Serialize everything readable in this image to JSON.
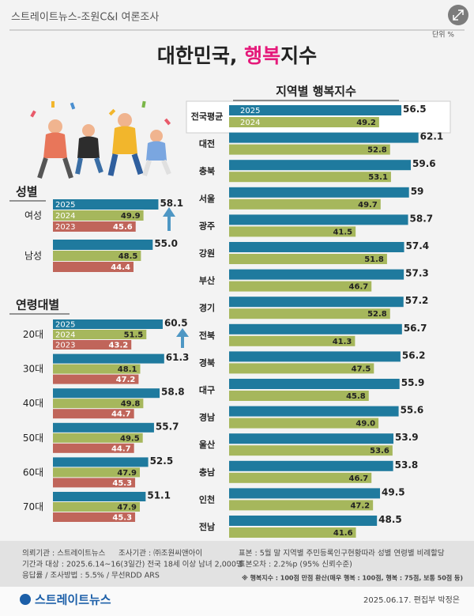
{
  "header": {
    "source": "스트레이트뉴스-조원C&I 여론조사",
    "unit": "단위 %",
    "title_parts": [
      "대한민국, ",
      "행복",
      "지수"
    ]
  },
  "chart_data": [
    {
      "type": "bar",
      "title": "성별",
      "categories": [
        "여성",
        "남성"
      ],
      "xlim": [
        0,
        64
      ],
      "series": [
        {
          "name": "2025",
          "color": "#1f7a9e",
          "values": [
            58.1,
            55.0
          ],
          "value_labels": [
            "58.1",
            "55.0"
          ]
        },
        {
          "name": "2024",
          "color": "#a6b75c",
          "values": [
            49.9,
            48.5
          ]
        },
        {
          "name": "2023",
          "color": "#c0655a",
          "values": [
            45.6,
            44.4
          ]
        }
      ]
    },
    {
      "type": "bar",
      "title": "연령대별",
      "categories": [
        "20대",
        "30대",
        "40대",
        "50대",
        "60대",
        "70대"
      ],
      "xlim": [
        0,
        64
      ],
      "series": [
        {
          "name": "2025",
          "color": "#1f7a9e",
          "values": [
            60.5,
            61.3,
            58.8,
            55.7,
            52.5,
            51.1
          ]
        },
        {
          "name": "2024",
          "color": "#a6b75c",
          "values": [
            51.5,
            48.1,
            49.8,
            49.5,
            47.9,
            47.9
          ]
        },
        {
          "name": "2023",
          "color": "#c0655a",
          "values": [
            43.2,
            47.2,
            44.7,
            44.7,
            45.3,
            45.3
          ]
        }
      ]
    },
    {
      "type": "bar",
      "title": "지역별 행복지수",
      "categories": [
        "전국평균",
        "대전",
        "충북",
        "서울",
        "광주",
        "강원",
        "부산",
        "경기",
        "전북",
        "경북",
        "대구",
        "경남",
        "울산",
        "충남",
        "인천",
        "전남"
      ],
      "xlim": [
        0,
        64
      ],
      "series": [
        {
          "name": "2025",
          "color": "#1f7a9e",
          "values": [
            56.5,
            62.1,
            59.6,
            59,
            58.7,
            57.4,
            57.3,
            57.2,
            56.7,
            56.2,
            55.9,
            55.6,
            53.9,
            53.8,
            49.5,
            48.5
          ]
        },
        {
          "name": "2024",
          "color": "#a6b75c",
          "values": [
            49.2,
            52.8,
            53.1,
            49.7,
            41.5,
            51.8,
            46.7,
            52.8,
            41.3,
            47.5,
            45.8,
            49.0,
            53.6,
            46.7,
            47.2,
            41.6
          ],
          "value_labels": [
            "49.2",
            "52.8",
            "53.1",
            "49.7",
            "41.5",
            "51.8",
            "46.7",
            "52.8",
            "41.3",
            "47.5",
            "45.8",
            "49.0",
            "53.6",
            "46.7",
            "47.2",
            "41.6"
          ]
        }
      ]
    }
  ],
  "footer": {
    "left": [
      "의뢰기관 : 스트레이트뉴스",
      "조사기관 : ㈜조원씨앤아이",
      "기간과 대상 : 2025.6.14~16(3일간)  전국 18세 이상 남녀 2,000명",
      "응답률 / 조사방법 : 5.5% / 무선RDD ARS"
    ],
    "right": [
      "표본 : 5월 말 지역별 주민등록인구현황따라 성별 연령별 비례할당",
      "표본오차 : 2.2%p (95% 신뢰수준)",
      "※ 행복지수 : 100점 만점 환산(매우 행복 : 100점, 행복 : 75점, 보통 50점 등)"
    ],
    "logo": "스트레이트뉴스",
    "credit": "2025.06.17. 편집부 박정은"
  }
}
